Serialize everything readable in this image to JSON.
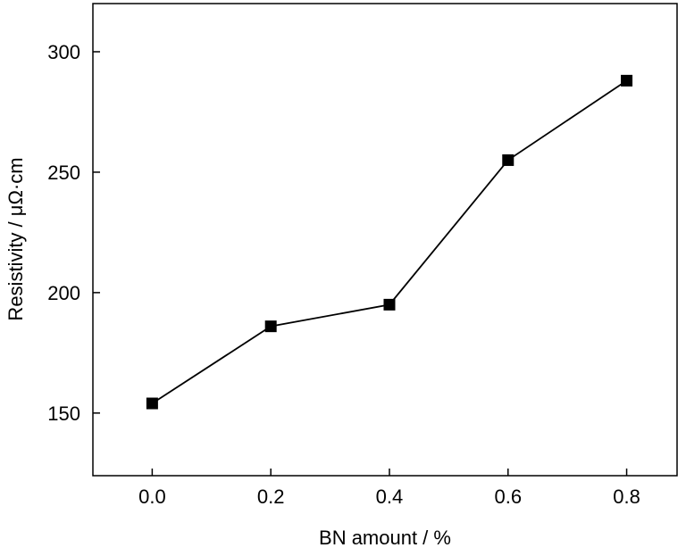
{
  "chart_data": {
    "type": "line",
    "title": "",
    "xlabel": "BN amount / %",
    "ylabel": "Resistivity / μΩ·cm",
    "x": [
      0.0,
      0.2,
      0.4,
      0.6,
      0.8
    ],
    "series": [
      {
        "values": [
          154,
          186,
          195,
          255,
          288
        ]
      }
    ],
    "xlim": [
      -0.1,
      0.885
    ],
    "ylim": [
      124,
      320
    ],
    "xticks": [
      0.0,
      0.2,
      0.4,
      0.6,
      0.8
    ],
    "xtick_labels": [
      "0.0",
      "0.2",
      "0.4",
      "0.6",
      "0.8"
    ],
    "yticks": [
      150,
      200,
      250,
      300
    ],
    "ytick_labels": [
      "150",
      "200",
      "250",
      "300"
    ],
    "grid": false,
    "legend": "none",
    "marker": "square",
    "line_color": "#000000",
    "marker_color": "#000000"
  }
}
